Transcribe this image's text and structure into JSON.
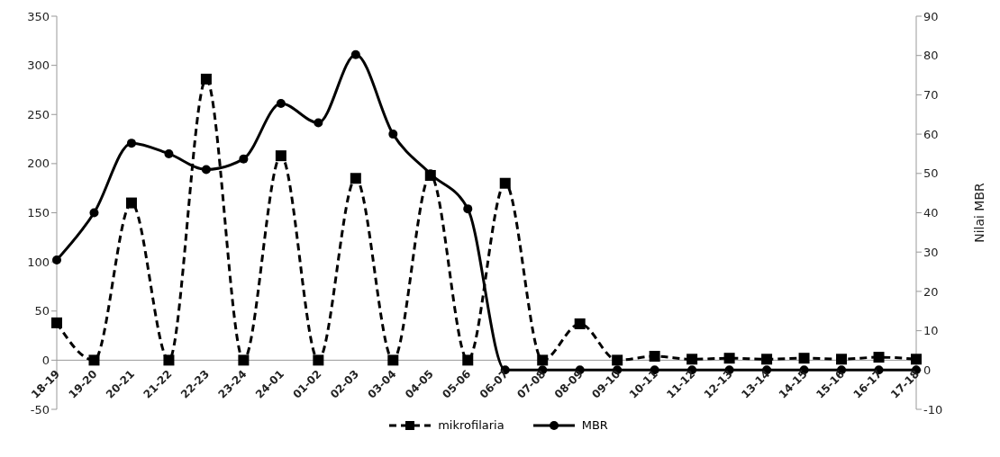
{
  "chart_data": {
    "type": "line",
    "y2label": "Nilai MBR",
    "categories": [
      "18-19",
      "19-20",
      "20-21",
      "21-22",
      "22-23",
      "23-24",
      "24-01",
      "01-02",
      "02-03",
      "03-04",
      "04-05",
      "05-06",
      "06-07",
      "07-08",
      "08-09",
      "09-10",
      "10-11",
      "11-12",
      "12-13",
      "13-14",
      "14-15",
      "15-16",
      "16-17",
      "17-18"
    ],
    "series": [
      {
        "name": "mikrofilaria",
        "color": "#000000",
        "marker": "square",
        "line_style": "dashed",
        "values": [
          38,
          0,
          160,
          0,
          286,
          0,
          208,
          0,
          185,
          0,
          188,
          0,
          180,
          0,
          37,
          0,
          4,
          1,
          2,
          1,
          2,
          1,
          3,
          1
        ]
      },
      {
        "name": "MBR",
        "color": "#000000",
        "marker": "circle",
        "line_style": "solid",
        "axis": "y2",
        "values": [
          28,
          40,
          57.7,
          55,
          51,
          53.7,
          67.8,
          62.9,
          80.2,
          60,
          49.9,
          41,
          0,
          0,
          0,
          0,
          0,
          0,
          0,
          0,
          0,
          0,
          0,
          0
        ]
      }
    ],
    "ylim": [
      -50,
      350
    ],
    "yticks": [
      -50,
      0,
      50,
      100,
      150,
      200,
      250,
      300,
      350
    ],
    "y2lim": [
      -10,
      90
    ],
    "y2ticks": [
      -10,
      0,
      10,
      20,
      30,
      40,
      50,
      60,
      70,
      80,
      90
    ],
    "legend": "bottom"
  }
}
